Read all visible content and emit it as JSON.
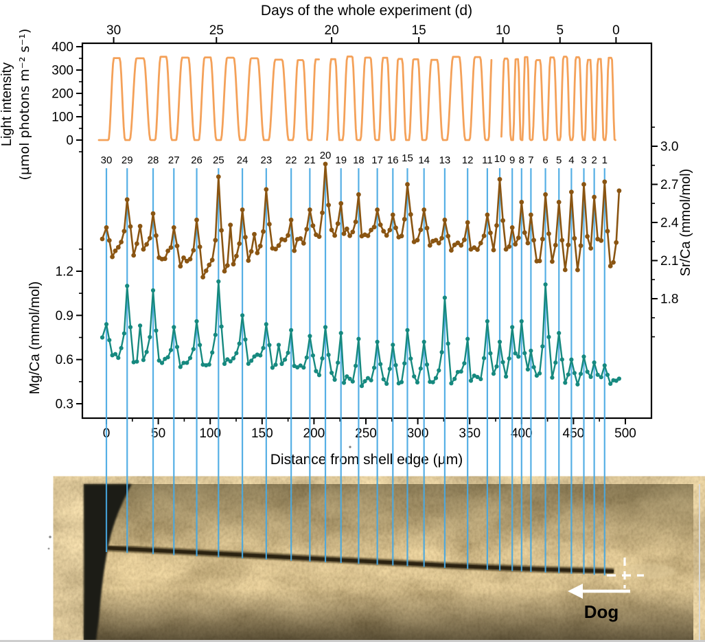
{
  "top_axis": {
    "title": "Days of the whole experiment (d)",
    "ticks": [
      {
        "label": "30",
        "um": 7
      },
      {
        "label": "25",
        "um": 106
      },
      {
        "label": "20",
        "um": 217
      },
      {
        "label": "15",
        "um": 301
      },
      {
        "label": "10",
        "um": 382
      },
      {
        "label": "5",
        "um": 437
      },
      {
        "label": "0",
        "um": 491
      }
    ]
  },
  "bottom_axis": {
    "title": "Distance from shell edge (µm)",
    "ticks": [
      0,
      50,
      100,
      150,
      200,
      250,
      300,
      350,
      400,
      450,
      500
    ]
  },
  "light_axis": {
    "label_line1": "Light intensity",
    "label_line2": "(µmol photons m⁻² s⁻¹)",
    "ticks": [
      0,
      100,
      200,
      300,
      400
    ]
  },
  "mg_axis": {
    "label": "Mg/Ca (mmol/mol)",
    "ticks": [
      0.3,
      0.6,
      0.9,
      1.2
    ]
  },
  "sr_axis": {
    "label": "Sr/Ca (mmol/mol)",
    "ticks": [
      1.8,
      2.1,
      2.4,
      2.7,
      3.0
    ]
  },
  "photo": {
    "growth_arrow_label": "Dog"
  },
  "colors": {
    "light_curve": "#F4A159",
    "sr_series": "#8A5512",
    "mg_series": "#16897F",
    "day_marker": "#47A8E3",
    "axis": "#000000",
    "annotation": "#FFFFFF"
  },
  "chart_data": {
    "type": "line",
    "x_axis": {
      "label": "Distance from shell edge (µm)",
      "range_um": [
        0,
        500
      ]
    },
    "panels": [
      {
        "series": "Light intensity",
        "units": "µmol photons m⁻² s⁻¹",
        "waveform": "day-night cycle",
        "night_value": 0,
        "day_value": 350,
        "cycles": 30,
        "ylim": [
          0,
          400
        ],
        "breaks_at_day": [
          20,
          10
        ]
      },
      {
        "series": "Sr/Ca",
        "units": "mmol/mol",
        "ylim": [
          1.8,
          3.0
        ]
      },
      {
        "series": "Mg/Ca",
        "units": "mmol/mol",
        "ylim": [
          0.3,
          1.2
        ]
      }
    ],
    "day_markers_note": "Vertical blue lines mark daily growth lines, day 30 (shell interior) to day 1 (shell edge reversed axis)",
    "days": [
      {
        "day": 30,
        "um": 0,
        "sr_peak": 2.36,
        "sr_base": 2.18,
        "mg_peak": 0.84,
        "mg_base": 0.66
      },
      {
        "day": 29,
        "um": 20,
        "sr_peak": 2.58,
        "sr_base": 2.22,
        "mg_peak": 1.1,
        "mg_base": 0.62
      },
      {
        "day": 28,
        "um": 45,
        "sr_peak": 2.47,
        "sr_base": 2.18,
        "mg_peak": 1.07,
        "mg_base": 0.6
      },
      {
        "day": 27,
        "um": 65,
        "sr_peak": 2.36,
        "sr_base": 2.12,
        "mg_peak": 0.82,
        "mg_base": 0.59
      },
      {
        "day": 26,
        "um": 87,
        "sr_peak": 2.42,
        "sr_base": 2.06,
        "mg_peak": 0.86,
        "mg_base": 0.58
      },
      {
        "day": 25,
        "um": 108,
        "sr_peak": 2.76,
        "sr_base": 2.02,
        "mg_peak": 1.13,
        "mg_base": 0.6
      },
      {
        "day": 24,
        "um": 131,
        "sr_peak": 2.5,
        "sr_base": 2.12,
        "mg_peak": 0.9,
        "mg_base": 0.62
      },
      {
        "day": 23,
        "um": 154,
        "sr_peak": 2.66,
        "sr_base": 2.18,
        "mg_peak": 0.84,
        "mg_base": 0.6
      },
      {
        "day": 22,
        "um": 178,
        "sr_peak": 2.42,
        "sr_base": 2.25,
        "mg_peak": 0.8,
        "mg_base": 0.57
      },
      {
        "day": 21,
        "um": 196,
        "sr_peak": 2.5,
        "sr_base": 2.28,
        "mg_peak": 0.76,
        "mg_base": 0.54
      },
      {
        "day": 20,
        "um": 211,
        "sr_peak": 2.86,
        "sr_base": 2.3,
        "mg_peak": 0.82,
        "mg_base": 0.5
      },
      {
        "day": 19,
        "um": 226,
        "sr_peak": 2.55,
        "sr_base": 2.32,
        "mg_peak": 0.78,
        "mg_base": 0.48
      },
      {
        "day": 18,
        "um": 243,
        "sr_peak": 2.62,
        "sr_base": 2.3,
        "mg_peak": 0.74,
        "mg_base": 0.47
      },
      {
        "day": 17,
        "um": 261,
        "sr_peak": 2.5,
        "sr_base": 2.3,
        "mg_peak": 0.72,
        "mg_base": 0.46
      },
      {
        "day": 16,
        "um": 276,
        "sr_peak": 2.46,
        "sr_base": 2.28,
        "mg_peak": 0.7,
        "mg_base": 0.46
      },
      {
        "day": 15,
        "um": 290,
        "sr_peak": 2.7,
        "sr_base": 2.3,
        "mg_peak": 0.8,
        "mg_base": 0.47
      },
      {
        "day": 14,
        "um": 306,
        "sr_peak": 2.5,
        "sr_base": 2.26,
        "mg_peak": 0.72,
        "mg_base": 0.45
      },
      {
        "day": 13,
        "um": 326,
        "sr_peak": 2.42,
        "sr_base": 2.2,
        "mg_peak": 1.02,
        "mg_base": 0.48
      },
      {
        "day": 12,
        "um": 348,
        "sr_peak": 2.4,
        "sr_base": 2.2,
        "mg_peak": 0.74,
        "mg_base": 0.5
      },
      {
        "day": 11,
        "um": 367,
        "sr_peak": 2.46,
        "sr_base": 2.22,
        "mg_peak": 0.86,
        "mg_base": 0.49
      },
      {
        "day": 10,
        "um": 379,
        "sr_peak": 2.74,
        "sr_base": 2.2,
        "mg_peak": 0.72,
        "mg_base": 0.47
      },
      {
        "day": 9,
        "um": 391,
        "sr_peak": 2.36,
        "sr_base": 2.12,
        "mg_peak": 0.82,
        "mg_base": 0.52
      },
      {
        "day": 8,
        "um": 400,
        "sr_peak": 2.56,
        "sr_base": 2.16,
        "mg_peak": 0.86,
        "mg_base": 0.5
      },
      {
        "day": 7,
        "um": 409,
        "sr_peak": 2.46,
        "sr_base": 2.12,
        "mg_peak": 0.66,
        "mg_base": 0.46
      },
      {
        "day": 6,
        "um": 423,
        "sr_peak": 2.62,
        "sr_base": 2.1,
        "mg_peak": 1.11,
        "mg_base": 0.5
      },
      {
        "day": 5,
        "um": 436,
        "sr_peak": 2.56,
        "sr_base": 2.05,
        "mg_peak": 0.78,
        "mg_base": 0.48
      },
      {
        "day": 4,
        "um": 448,
        "sr_peak": 2.64,
        "sr_base": 2.02,
        "mg_peak": 0.6,
        "mg_base": 0.44
      },
      {
        "day": 3,
        "um": 460,
        "sr_peak": 2.7,
        "sr_base": 1.98,
        "mg_peak": 0.62,
        "mg_base": 0.45
      },
      {
        "day": 2,
        "um": 470,
        "sr_peak": 2.6,
        "sr_base": 2.02,
        "mg_peak": 0.58,
        "mg_base": 0.43
      },
      {
        "day": 1,
        "um": 480,
        "sr_peak": 2.72,
        "sr_base": 2.05,
        "mg_peak": 0.56,
        "mg_base": 0.45
      }
    ],
    "series_end_um": 494,
    "sr_end_value": 2.65,
    "mg_end_value": 0.47
  }
}
